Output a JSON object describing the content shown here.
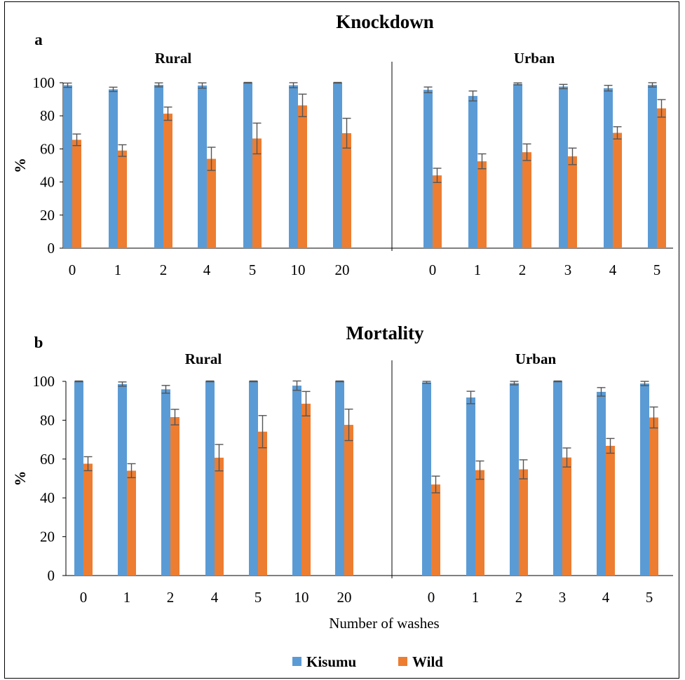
{
  "legend": [
    {
      "name": "Kisumu",
      "color": "#5b9bd5"
    },
    {
      "name": "Wild",
      "color": "#ed7d31"
    }
  ],
  "xlabel": "Number of washes",
  "chart_data": [
    {
      "type": "bar",
      "panel": "a",
      "title": "Knockdown",
      "ylabel": "%",
      "ylim": [
        0,
        100
      ],
      "yticks": [
        0,
        20,
        40,
        60,
        80,
        100
      ],
      "groups": [
        {
          "name": "Rural",
          "categories": [
            "0",
            "1",
            "2",
            "4",
            "5",
            "10",
            "20"
          ],
          "series": [
            {
              "name": "Kisumu",
              "values": [
                98.5,
                96,
                98.7,
                98.3,
                100,
                98.5,
                100
              ],
              "errors": [
                1.3,
                1.3,
                1.2,
                1.6,
                0.2,
                1.5,
                0.2
              ]
            },
            {
              "name": "Wild",
              "values": [
                65.5,
                59,
                81.3,
                54,
                66.3,
                86.3,
                69.5
              ],
              "errors": [
                3.5,
                3.5,
                4,
                7,
                9.3,
                6.8,
                9
              ]
            }
          ]
        },
        {
          "name": "Urban",
          "categories": [
            "0",
            "1",
            "2",
            "3",
            "4",
            "5"
          ],
          "series": [
            {
              "name": "Kisumu",
              "values": [
                95.7,
                92,
                99.3,
                97.7,
                96.7,
                98.7
              ],
              "errors": [
                1.7,
                3,
                0.6,
                1.3,
                1.7,
                1.3
              ]
            },
            {
              "name": "Wild",
              "values": [
                44,
                52.5,
                58,
                55.5,
                69.7,
                84.5
              ],
              "errors": [
                4.3,
                4.5,
                5,
                5,
                3.7,
                5.3
              ]
            }
          ]
        }
      ]
    },
    {
      "type": "bar",
      "panel": "b",
      "title": "Mortality",
      "ylabel": "%",
      "ylim": [
        0,
        100
      ],
      "yticks": [
        0,
        20,
        40,
        60,
        80,
        100
      ],
      "groups": [
        {
          "name": "Rural",
          "categories": [
            "0",
            "1",
            "2",
            "4",
            "5",
            "10",
            "20"
          ],
          "series": [
            {
              "name": "Kisumu",
              "values": [
                100,
                98.6,
                95.9,
                100,
                100,
                97.8,
                100
              ],
              "errors": [
                0.2,
                1.1,
                2,
                0.2,
                0.2,
                2.4,
                0.2
              ]
            },
            {
              "name": "Wild",
              "values": [
                57.6,
                54,
                81.6,
                60.7,
                74.1,
                88.5,
                77.6
              ],
              "errors": [
                3.6,
                3.6,
                4,
                6.8,
                8.3,
                6.3,
                8.1
              ]
            }
          ]
        },
        {
          "name": "Urban",
          "categories": [
            "0",
            "1",
            "2",
            "3",
            "4",
            "5"
          ],
          "series": [
            {
              "name": "Kisumu",
              "values": [
                99.5,
                91.7,
                99.1,
                100,
                94.6,
                98.9
              ],
              "errors": [
                0.5,
                3.2,
                0.9,
                0.2,
                2.2,
                1.1
              ]
            },
            {
              "name": "Wild",
              "values": [
                46.9,
                54.3,
                54.7,
                60.8,
                66.8,
                81.4
              ],
              "errors": [
                4.3,
                4.7,
                4.9,
                4.9,
                3.8,
                5.4
              ]
            }
          ]
        }
      ]
    }
  ]
}
